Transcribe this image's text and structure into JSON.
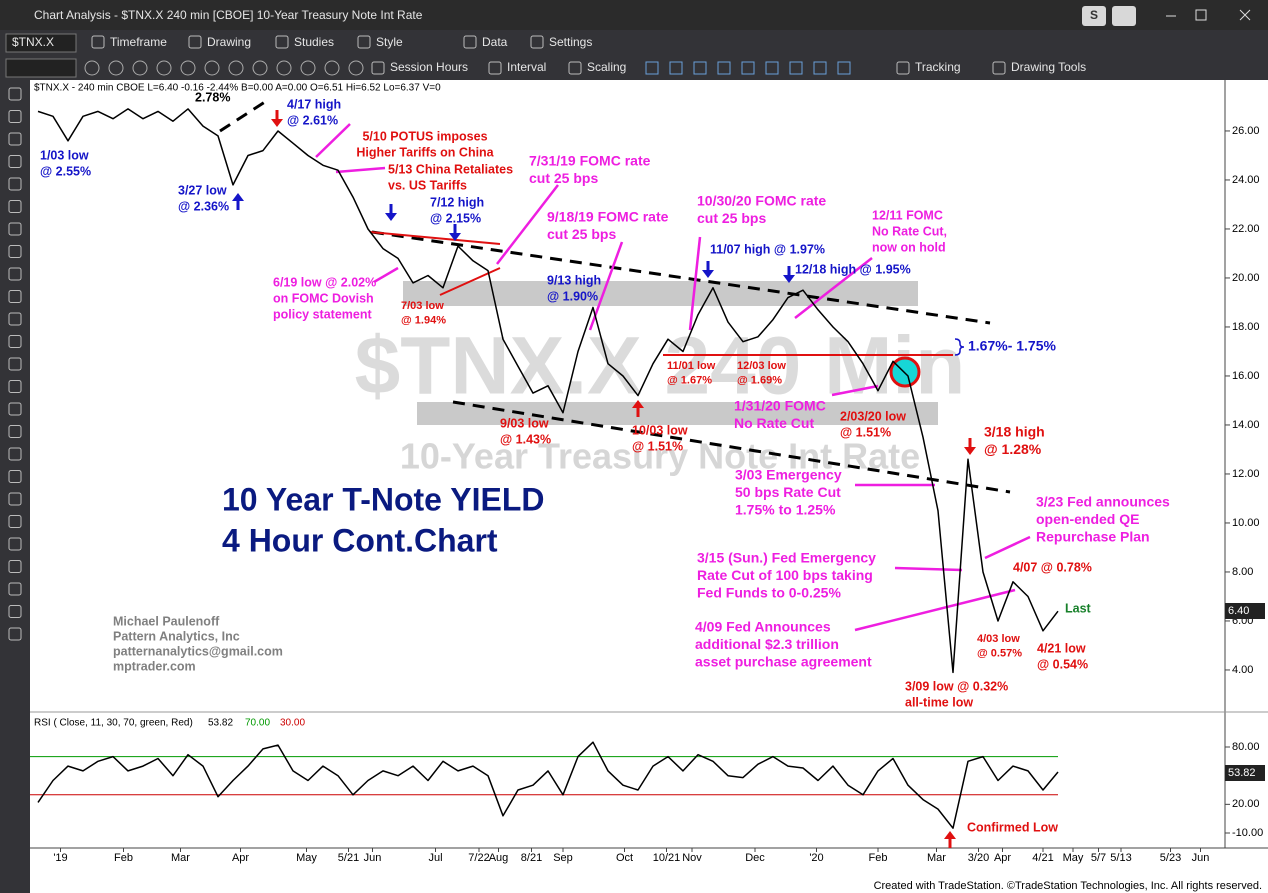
{
  "window": {
    "title": "Chart Analysis - $TNX.X 240 min [CBOE] 10-Year Treasury Note Int Rate",
    "profile": "S"
  },
  "toolbar": {
    "symbol": "$TNX.X",
    "row1": [
      "Timeframe",
      "Drawing",
      "Studies",
      "Style",
      "Data",
      "Settings"
    ],
    "row2": [
      "Session Hours",
      "Interval",
      "Scaling",
      "Tracking",
      "Drawing Tools"
    ]
  },
  "info_line": "$TNX.X - 240 min  CBOE  L=6.40  -0.16  -2.44%  B=0.00  A=0.00  O=6.51  Hi=6.52  Lo=6.37  V=0",
  "watermark": {
    "symbol": "$TNX.X 240 Min",
    "description": "10-Year Treasury Note Int Rate"
  },
  "headline": [
    "10 Year T-Note YIELD",
    "4 Hour Cont.Chart"
  ],
  "credits": [
    "Michael Paulenoff",
    "Pattern Analytics, Inc",
    "patternanalytics@gmail.com",
    "mptrader.com"
  ],
  "rsi_label": {
    "text": "RSI ( Close, 11, 30, 70, green, Red)",
    "current": "53.82",
    "upper": "70.00",
    "lower": "30.00"
  },
  "last_price": {
    "label": "Last",
    "value": "6.40"
  },
  "footer": "Created with TradeStation. ©TradeStation Technologies, Inc. All rights reserved.",
  "annotations": [
    {
      "text": [
        "2.78%"
      ],
      "color": "#000000"
    },
    {
      "text": [
        "4/17 high",
        "@ 2.61%"
      ],
      "color": "#1515c8"
    },
    {
      "text": [
        "1/03 low",
        "@ 2.55%"
      ],
      "color": "#1515c8"
    },
    {
      "text": [
        "3/27 low",
        "@ 2.36%"
      ],
      "color": "#1515c8"
    },
    {
      "text": [
        "5/10 POTUS imposes",
        "Higher Tariffs on China"
      ],
      "color": "#e01010"
    },
    {
      "text": [
        "5/13 China Retaliates",
        "vs. US Tariffs"
      ],
      "color": "#e01010"
    },
    {
      "text": [
        "7/31/19 FOMC rate",
        "cut 25 bps"
      ],
      "color": "#ee1ee0"
    },
    {
      "text": [
        "7/12 high",
        "@ 2.15%"
      ],
      "color": "#1515c8"
    },
    {
      "text": [
        "9/18/19 FOMC rate",
        "cut 25 bps"
      ],
      "color": "#ee1ee0"
    },
    {
      "text": [
        "10/30/20 FOMC rate",
        "cut 25 bps"
      ],
      "color": "#ee1ee0"
    },
    {
      "text": [
        "12/11 FOMC",
        "No Rate Cut,",
        "now on hold"
      ],
      "color": "#ee1ee0"
    },
    {
      "text": [
        "11/07 high @ 1.97%"
      ],
      "color": "#1515c8"
    },
    {
      "text": [
        "12/18 high @ 1.95%"
      ],
      "color": "#1515c8"
    },
    {
      "text": [
        "9/13 high",
        "@ 1.90%"
      ],
      "color": "#1515c8"
    },
    {
      "text": [
        "6/19 low @ 2.02%",
        "on FOMC Dovish",
        "policy statement"
      ],
      "color": "#ee1ee0"
    },
    {
      "text": [
        "7/03 low",
        "@ 1.94%"
      ],
      "color": "#e01010"
    },
    {
      "text": [
        "1.67%- 1.75%"
      ],
      "color": "#1515c8"
    },
    {
      "text": [
        "11/01 low",
        "@ 1.67%"
      ],
      "color": "#e01010"
    },
    {
      "text": [
        "12/03 low",
        "@ 1.69%"
      ],
      "color": "#e01010"
    },
    {
      "text": [
        "1/31/20 FOMC",
        "No Rate Cut"
      ],
      "color": "#ee1ee0"
    },
    {
      "text": [
        "2/03/20 low",
        "@ 1.51%"
      ],
      "color": "#e01010"
    },
    {
      "text": [
        "9/03 low",
        "@ 1.43%"
      ],
      "color": "#e01010"
    },
    {
      "text": [
        "10/03 low",
        "@ 1.51%"
      ],
      "color": "#e01010"
    },
    {
      "text": [
        "3/18 high",
        "@ 1.28%"
      ],
      "color": "#e01010"
    },
    {
      "text": [
        "3/03 Emergency",
        "50 bps Rate Cut",
        "1.75% to 1.25%"
      ],
      "color": "#ee1ee0"
    },
    {
      "text": [
        "3/23 Fed announces",
        "open-ended QE",
        "Repurchase Plan"
      ],
      "color": "#ee1ee0"
    },
    {
      "text": [
        "3/15 (Sun.) Fed Emergency",
        "Rate Cut of 100 bps taking",
        "Fed Funds to 0-0.25%"
      ],
      "color": "#ee1ee0"
    },
    {
      "text": [
        "4/07 @ 0.78%"
      ],
      "color": "#e01010"
    },
    {
      "text": [
        "4/09 Fed Announces",
        "additional $2.3 trillion",
        "asset purchase agreement"
      ],
      "color": "#ee1ee0"
    },
    {
      "text": [
        "4/03 low",
        "@ 0.57%"
      ],
      "color": "#e01010"
    },
    {
      "text": [
        "4/21 low",
        "@ 0.54%"
      ],
      "color": "#e01010"
    },
    {
      "text": [
        "3/09 low @ 0.32%",
        "all-time low"
      ],
      "color": "#e01010"
    },
    {
      "text": [
        "Confirmed Low"
      ],
      "color": "#e01010"
    }
  ],
  "chart_data": [
    {
      "type": "line",
      "series": [
        {
          "name": "$TNX.X",
          "color": "#000000",
          "values": [
            26.8,
            26.6,
            25.6,
            26.6,
            26.8,
            26.5,
            26.9,
            26.5,
            26.8,
            26.4,
            26.9,
            26.2,
            25.8,
            23.8,
            25.0,
            25.2,
            26.0,
            25.5,
            25.0,
            24.6,
            24.4,
            23.3,
            22.0,
            21.2,
            20.8,
            19.8,
            20.1,
            19.6,
            21.3,
            20.7,
            20.3,
            17.5,
            16.4,
            15.3,
            15.6,
            14.5,
            17.0,
            18.8,
            16.5,
            16.0,
            15.2,
            16.5,
            17.5,
            17.0,
            18.5,
            19.6,
            18.2,
            17.4,
            17.6,
            18.3,
            19.2,
            19.5,
            18.7,
            18.0,
            17.4,
            16.5,
            15.4,
            16.6,
            16.0,
            13.5,
            10.5,
            3.9,
            12.6,
            8.0,
            6.0,
            7.6,
            7.0,
            5.6,
            6.4
          ]
        }
      ],
      "xlim": [
        0,
        78
      ],
      "ylim": [
        2.57,
        28.08
      ],
      "yticks": [
        {
          "value": 26,
          "label": "26.00"
        },
        {
          "value": 24,
          "label": "24.00"
        },
        {
          "value": 22,
          "label": "22.00"
        },
        {
          "value": 20,
          "label": "20.00"
        },
        {
          "value": 18,
          "label": "18.00"
        },
        {
          "value": 16,
          "label": "16.00"
        },
        {
          "value": 14,
          "label": "14.00"
        },
        {
          "value": 12,
          "label": "12.00"
        },
        {
          "value": 10,
          "label": "10.00"
        },
        {
          "value": 8,
          "label": "8.00"
        },
        {
          "value": 6,
          "label": "6.00"
        },
        {
          "value": 4,
          "label": "4.00"
        }
      ],
      "xticks": [
        {
          "value": 1.5,
          "label": "'19"
        },
        {
          "value": 5.7,
          "label": "Feb"
        },
        {
          "value": 9.5,
          "label": "Mar"
        },
        {
          "value": 13.5,
          "label": "Apr"
        },
        {
          "value": 17.9,
          "label": "May"
        },
        {
          "value": 20.7,
          "label": "5/21"
        },
        {
          "value": 22.3,
          "label": "Jun"
        },
        {
          "value": 26.5,
          "label": "Jul"
        },
        {
          "value": 29.4,
          "label": "7/22"
        },
        {
          "value": 30.7,
          "label": "Aug"
        },
        {
          "value": 32.9,
          "label": "8/21"
        },
        {
          "value": 35,
          "label": "Sep"
        },
        {
          "value": 39.1,
          "label": "Oct"
        },
        {
          "value": 41.9,
          "label": "10/21"
        },
        {
          "value": 43.6,
          "label": "Nov"
        },
        {
          "value": 47.8,
          "label": "Dec"
        },
        {
          "value": 51.9,
          "label": "'20"
        },
        {
          "value": 56,
          "label": "Feb"
        },
        {
          "value": 59.9,
          "label": "Mar"
        },
        {
          "value": 62.7,
          "label": "3/20"
        },
        {
          "value": 64.3,
          "label": "Apr"
        },
        {
          "value": 67,
          "label": "4/21"
        },
        {
          "value": 69,
          "label": "May"
        },
        {
          "value": 70.7,
          "label": "5/7"
        },
        {
          "value": 72.2,
          "label": "5/13"
        },
        {
          "value": 75.5,
          "label": "5/23"
        },
        {
          "value": 77.5,
          "label": "Jun"
        }
      ]
    },
    {
      "type": "line",
      "series": [
        {
          "name": "RSI",
          "color": "#000000",
          "values": [
            22,
            45,
            60,
            55,
            65,
            70,
            55,
            60,
            68,
            50,
            72,
            60,
            28,
            45,
            60,
            78,
            82,
            55,
            45,
            60,
            50,
            30,
            45,
            55,
            50,
            60,
            45,
            65,
            55,
            60,
            50,
            8,
            35,
            40,
            55,
            30,
            70,
            85,
            55,
            40,
            35,
            60,
            70,
            55,
            72,
            65,
            50,
            48,
            62,
            70,
            60,
            58,
            45,
            60,
            40,
            30,
            55,
            68,
            40,
            25,
            15,
            -5,
            65,
            70,
            45,
            60,
            55,
            35,
            53.82
          ]
        }
      ],
      "xlim": [
        0,
        78
      ],
      "ylim": [
        -25.7,
        115.6
      ],
      "levels": [
        {
          "value": 70,
          "color": "#009900"
        },
        {
          "value": 30,
          "color": "#cc0000"
        }
      ],
      "yticks": [
        {
          "value": 80,
          "label": "80.00"
        },
        {
          "value": 20,
          "label": "20.00"
        },
        {
          "value": -10,
          "label": "-10.00"
        }
      ]
    }
  ]
}
